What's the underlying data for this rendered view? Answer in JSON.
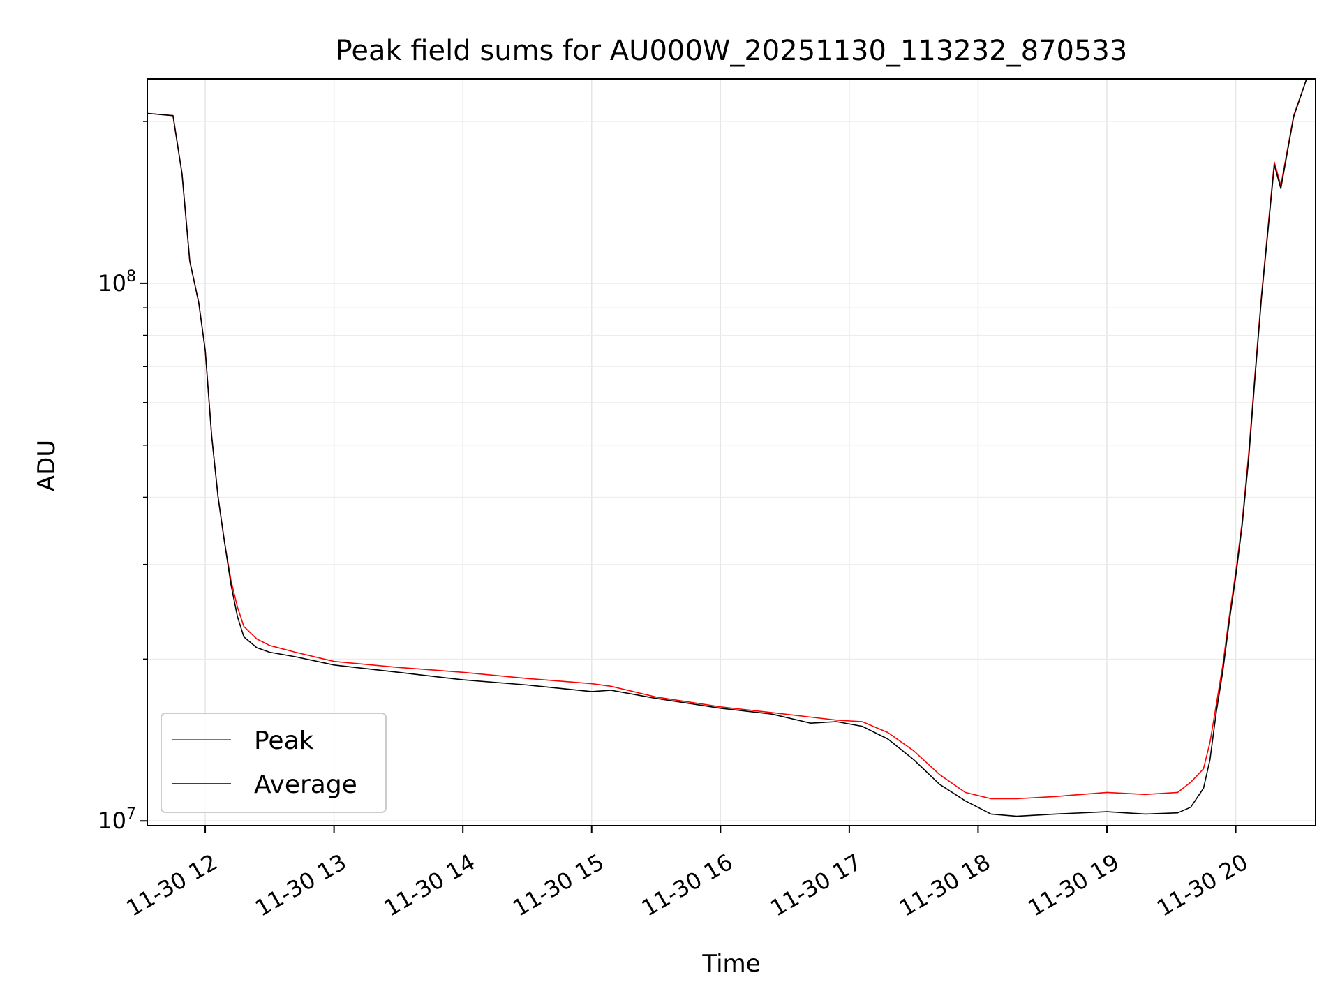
{
  "chart_data": {
    "type": "line",
    "title": "Peak field sums for AU000W_20251130_113232_870533",
    "xlabel": "Time",
    "ylabel": "ADU",
    "yscale": "log",
    "ylim": [
      9800000,
      240000000
    ],
    "xlim": [
      11.55,
      20.62
    ],
    "x_unit": "hour of day",
    "grid": true,
    "legend_position": "lower-left",
    "x_ticks": [
      {
        "value": 12,
        "label": "11-30 12"
      },
      {
        "value": 13,
        "label": "11-30 13"
      },
      {
        "value": 14,
        "label": "11-30 14"
      },
      {
        "value": 15,
        "label": "11-30 15"
      },
      {
        "value": 16,
        "label": "11-30 16"
      },
      {
        "value": 17,
        "label": "11-30 17"
      },
      {
        "value": 18,
        "label": "11-30 18"
      },
      {
        "value": 19,
        "label": "11-30 19"
      },
      {
        "value": 20,
        "label": "11-30 20"
      }
    ],
    "y_ticks": [
      {
        "value": 10000000,
        "base": "10",
        "exp": "7"
      },
      {
        "value": 100000000,
        "base": "10",
        "exp": "8"
      }
    ],
    "series": [
      {
        "name": "Peak",
        "color": "#ff0000",
        "x": [
          11.55,
          11.75,
          11.82,
          11.88,
          11.95,
          12.0,
          12.05,
          12.1,
          12.15,
          12.2,
          12.25,
          12.3,
          12.4,
          12.5,
          12.7,
          13.0,
          13.5,
          14.0,
          14.5,
          15.0,
          15.15,
          15.5,
          16.0,
          16.4,
          16.7,
          16.9,
          17.1,
          17.3,
          17.5,
          17.7,
          17.9,
          18.1,
          18.3,
          18.6,
          19.0,
          19.3,
          19.55,
          19.65,
          19.75,
          19.8,
          19.85,
          19.9,
          19.95,
          20.0,
          20.05,
          20.1,
          20.15,
          20.2,
          20.28,
          20.3,
          20.35,
          20.45,
          20.55
        ],
        "values": [
          207000000,
          205000000,
          160000000,
          110000000,
          92000000,
          75000000,
          52000000,
          40000000,
          33000000,
          28000000,
          25000000,
          23000000,
          21800000,
          21200000,
          20600000,
          19800000,
          19300000,
          18900000,
          18400000,
          18000000,
          17800000,
          17000000,
          16300000,
          15900000,
          15600000,
          15400000,
          15300000,
          14600000,
          13500000,
          12200000,
          11300000,
          11000000,
          11000000,
          11100000,
          11300000,
          11200000,
          11300000,
          11800000,
          12500000,
          14000000,
          16500000,
          19500000,
          24000000,
          29000000,
          36000000,
          48000000,
          68000000,
          95000000,
          150000000,
          168000000,
          152000000,
          205000000,
          240000000
        ]
      },
      {
        "name": "Average",
        "color": "#000000",
        "x": [
          11.55,
          11.75,
          11.82,
          11.88,
          11.95,
          12.0,
          12.05,
          12.1,
          12.15,
          12.2,
          12.25,
          12.3,
          12.4,
          12.5,
          12.7,
          13.0,
          13.5,
          14.0,
          14.5,
          15.0,
          15.15,
          15.5,
          16.0,
          16.4,
          16.7,
          16.9,
          17.1,
          17.3,
          17.5,
          17.7,
          17.9,
          18.1,
          18.3,
          18.6,
          19.0,
          19.3,
          19.55,
          19.65,
          19.75,
          19.8,
          19.85,
          19.9,
          19.95,
          20.0,
          20.05,
          20.1,
          20.15,
          20.2,
          20.28,
          20.3,
          20.35,
          20.45,
          20.55
        ],
        "values": [
          207000000,
          205000000,
          160000000,
          110000000,
          92000000,
          75000000,
          52000000,
          40000000,
          33000000,
          27500000,
          24000000,
          22000000,
          21000000,
          20600000,
          20200000,
          19500000,
          18900000,
          18300000,
          17900000,
          17400000,
          17500000,
          16900000,
          16200000,
          15800000,
          15200000,
          15300000,
          15000000,
          14200000,
          13000000,
          11700000,
          10900000,
          10300000,
          10200000,
          10300000,
          10400000,
          10300000,
          10350000,
          10600000,
          11500000,
          13000000,
          16000000,
          19000000,
          23500000,
          28500000,
          35500000,
          47000000,
          67000000,
          94000000,
          148000000,
          166000000,
          150000000,
          204000000,
          240000000
        ]
      }
    ]
  }
}
